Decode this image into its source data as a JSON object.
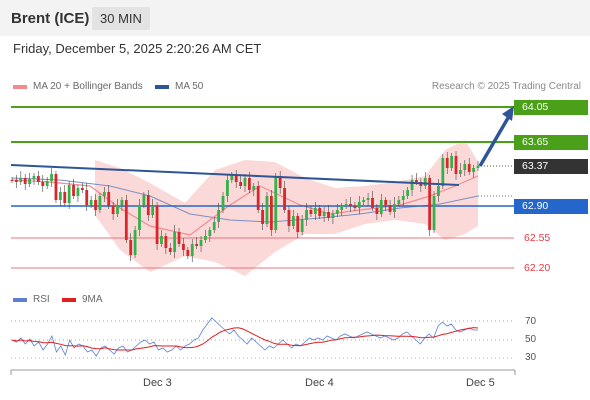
{
  "header": {
    "instrument": "Brent (ICE)",
    "timeframe": "30 MIN",
    "datetime": "Friday, December 5, 2025 2:20:26 AM CET"
  },
  "legend": {
    "ma20": "MA 20 + Bollinger Bands",
    "ma50": "MA 50",
    "credit": "Research © 2025 Trading Central",
    "rsi": "RSI",
    "ma9": "9MA"
  },
  "colors": {
    "green": "#4aa019",
    "blue_level": "#2466c9",
    "red_level": "#e8717b",
    "current": "#333333",
    "trend": "#2e5596",
    "candle_up": "#36b04a",
    "candle_down": "#d9262a",
    "band": "#fbd2d2",
    "ma20": "#f28b8f",
    "ma50": "#7b8fbf",
    "rsi": "#5a7fd4",
    "rsi_ma": "#e31e1e"
  },
  "levels": [
    {
      "price": "64.05",
      "style": "green-box"
    },
    {
      "price": "63.65",
      "style": "green-box"
    },
    {
      "price": "63.37",
      "style": "current-box"
    },
    {
      "price": "62.90",
      "style": "blue-box"
    },
    {
      "price": "62.55",
      "style": "red-plain"
    },
    {
      "price": "62.20",
      "style": "red-plain"
    }
  ],
  "rsi_ticks": [
    "70",
    "50",
    "30"
  ],
  "x_ticks": [
    "Dec 3",
    "Dec 4",
    "Dec 5"
  ]
}
